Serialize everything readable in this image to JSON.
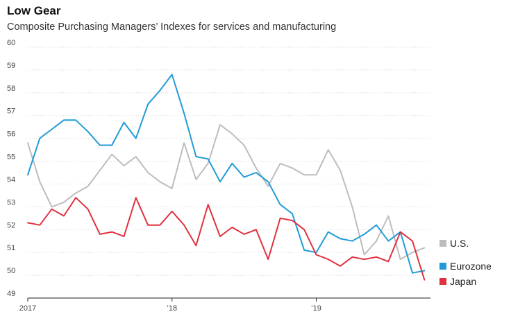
{
  "header": {
    "title": "Low Gear",
    "subtitle": "Composite Purchasing Managers’ Indexes for services and manufacturing"
  },
  "chart_data": {
    "type": "line",
    "title": "Low Gear",
    "subtitle": "Composite Purchasing Managers’ Indexes for services and manufacturing",
    "xlabel": "",
    "ylabel": "",
    "ylim": [
      49,
      60
    ],
    "yticks": [
      "49",
      "50",
      "51",
      "52",
      "53",
      "54",
      "55",
      "56",
      "57",
      "58",
      "59",
      "60"
    ],
    "xticks": [
      "2017",
      "’18",
      "’19"
    ],
    "x": [
      "2017-01",
      "2017-02",
      "2017-03",
      "2017-04",
      "2017-05",
      "2017-06",
      "2017-07",
      "2017-08",
      "2017-09",
      "2017-10",
      "2017-11",
      "2017-12",
      "2018-01",
      "2018-02",
      "2018-03",
      "2018-04",
      "2018-05",
      "2018-06",
      "2018-07",
      "2018-08",
      "2018-09",
      "2018-10",
      "2018-11",
      "2018-12",
      "2019-01",
      "2019-02",
      "2019-03",
      "2019-04",
      "2019-05",
      "2019-06",
      "2019-07",
      "2019-08",
      "2019-09",
      "2019-10"
    ],
    "grid": true,
    "legend_position": "right",
    "series": [
      {
        "name": "U.S.",
        "color": "#bdbdbd",
        "values": [
          55.8,
          54.1,
          53.0,
          53.2,
          53.6,
          53.9,
          54.6,
          55.3,
          54.8,
          55.2,
          54.5,
          54.1,
          53.8,
          55.8,
          54.2,
          54.9,
          56.6,
          56.2,
          55.7,
          54.7,
          53.9,
          54.9,
          54.7,
          54.4,
          54.4,
          55.5,
          54.6,
          53.0,
          50.9,
          51.5,
          52.6,
          50.7,
          51.0,
          51.2
        ]
      },
      {
        "name": "Eurozone",
        "color": "#1f9bd7",
        "values": [
          54.4,
          56.0,
          56.4,
          56.8,
          56.8,
          56.3,
          55.7,
          55.7,
          56.7,
          56.0,
          57.5,
          58.1,
          58.8,
          57.1,
          55.2,
          55.1,
          54.1,
          54.9,
          54.3,
          54.5,
          54.1,
          53.1,
          52.7,
          51.1,
          51.0,
          51.9,
          51.6,
          51.5,
          51.8,
          52.2,
          51.5,
          51.9,
          50.1,
          50.2
        ]
      },
      {
        "name": "Japan",
        "color": "#e0313f",
        "values": [
          52.3,
          52.2,
          52.9,
          52.6,
          53.4,
          52.9,
          51.8,
          51.9,
          51.7,
          53.4,
          52.2,
          52.2,
          52.8,
          52.2,
          51.3,
          53.1,
          51.7,
          52.1,
          51.8,
          52.0,
          50.7,
          52.5,
          52.4,
          52.0,
          50.9,
          50.7,
          50.4,
          50.8,
          50.7,
          50.8,
          50.6,
          51.9,
          51.5,
          49.8
        ]
      }
    ]
  }
}
